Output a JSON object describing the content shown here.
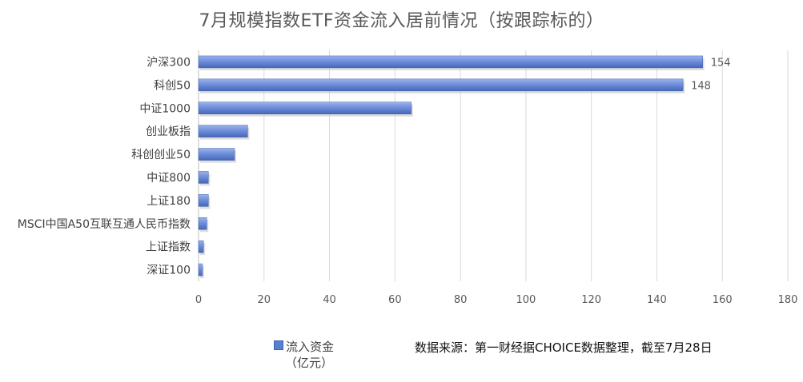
{
  "chart_data": {
    "type": "bar",
    "orientation": "horizontal",
    "title": "7月规模指数ETF资金流入居前情况（按跟踪标的）",
    "categories": [
      "沪深300",
      "科创50",
      "中证1000",
      "创业板指",
      "科创创业50",
      "中证800",
      "上证180",
      "MSCI中国A50互联互通人民币指数",
      "上证指数",
      "深证100"
    ],
    "series": [
      {
        "name": "流入资金\n（亿元）",
        "values": [
          154,
          148,
          65,
          15,
          11,
          3,
          3,
          2.5,
          1.5,
          1.2
        ]
      }
    ],
    "data_labels": [
      {
        "category": "沪深300",
        "text": "154"
      },
      {
        "category": "科创50",
        "text": "148"
      }
    ],
    "xlim": [
      0,
      180
    ],
    "x_ticks": [
      "0",
      "20",
      "40",
      "60",
      "80",
      "100",
      "120",
      "140",
      "160",
      "180"
    ],
    "grid": "vertical",
    "legend": {
      "position": "bottom-left",
      "label": "流入资金",
      "unit": "（亿元）"
    },
    "colors": {
      "bar": "#5b7fd0",
      "bar_light": "#8fa9e4",
      "bar_dark": "#3e62b0",
      "grid": "#d9d9d9"
    }
  },
  "source_note": "数据来源：第一财经据CHOICE数据整理，截至7月28日"
}
